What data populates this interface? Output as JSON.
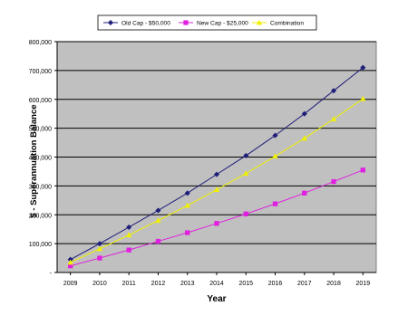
{
  "chart_data": {
    "type": "line",
    "title": "",
    "xlabel": "Year",
    "ylabel": "$ - Superannuation Balance",
    "x": [
      2009,
      2010,
      2011,
      2012,
      2013,
      2014,
      2015,
      2016,
      2017,
      2018,
      2019
    ],
    "x_tick_labels": [
      "2009",
      "2010",
      "2011",
      "2012",
      "2013",
      "2014",
      "2015",
      "2016",
      "2017",
      "2018",
      "2019"
    ],
    "ylim": [
      0,
      800000
    ],
    "y_ticks": [
      0,
      100000,
      200000,
      300000,
      400000,
      500000,
      600000,
      700000,
      800000
    ],
    "y_tick_labels": [
      "-",
      "100,000",
      "200,000",
      "300,000",
      "400,000",
      "500,000",
      "600,000",
      "700,000",
      "800,000"
    ],
    "grid": true,
    "plot_background": "#c0c0c0",
    "legend_position": "top",
    "series": [
      {
        "name": "Old Cap - $50,000",
        "color": "#1f1f7a",
        "marker": "diamond",
        "values": [
          45000,
          100000,
          157000,
          215000,
          275000,
          340000,
          405000,
          475000,
          550000,
          630000,
          710000
        ]
      },
      {
        "name": "New Cap - $25,000",
        "color": "#e020e0",
        "marker": "square",
        "values": [
          23000,
          50000,
          78000,
          108000,
          138000,
          170000,
          203000,
          238000,
          275000,
          315000,
          355000
        ]
      },
      {
        "name": "Combination",
        "color": "#f0f000",
        "marker": "triangle",
        "values": [
          35000,
          82000,
          130000,
          180000,
          232000,
          287000,
          343000,
          403000,
          465000,
          532000,
          602000
        ]
      }
    ]
  }
}
